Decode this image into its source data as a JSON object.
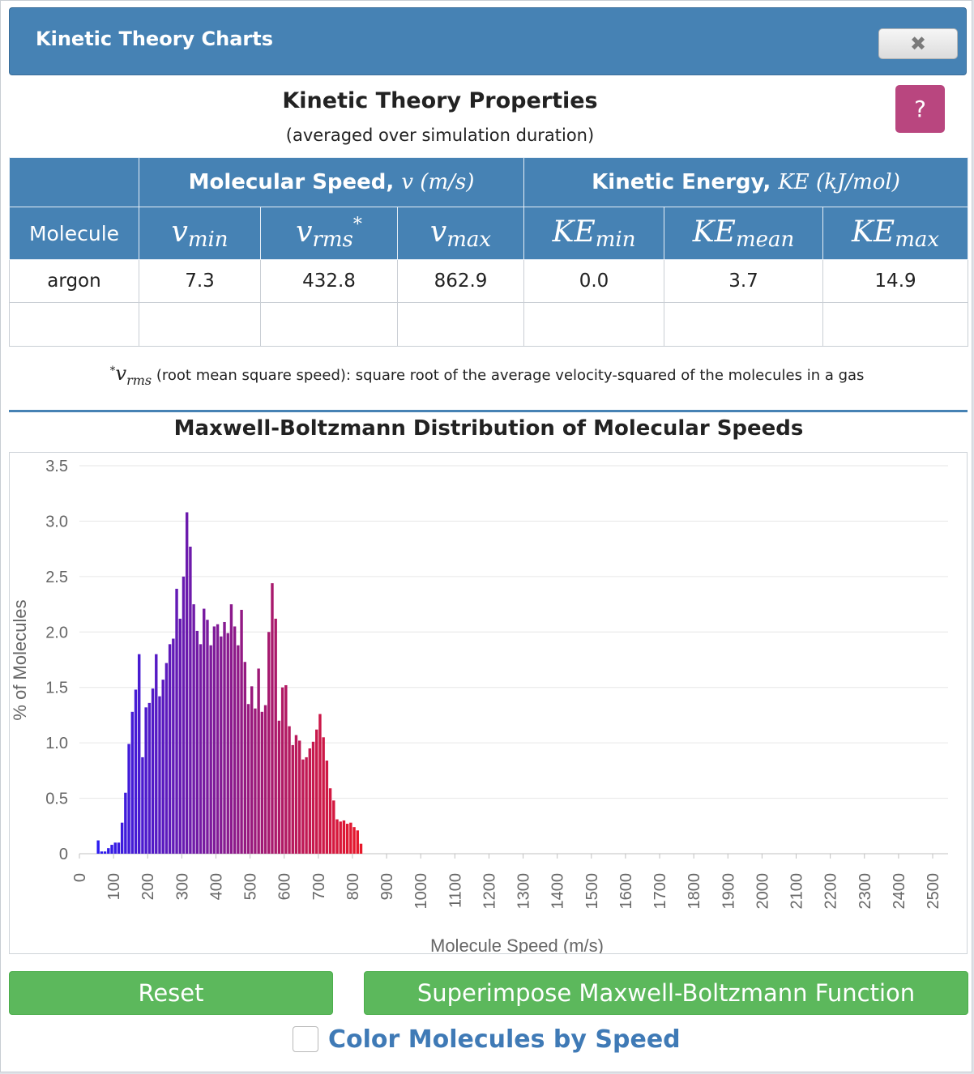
{
  "dialog": {
    "title": "Kinetic Theory Charts",
    "close_glyph": "✖",
    "help_glyph": "?"
  },
  "properties": {
    "title": "Kinetic Theory Properties",
    "subtitle": "(averaged over simulation duration)",
    "group_speed_label": "Molecular Speed, ",
    "group_speed_math": "v (m/s)",
    "group_energy_label": "Kinetic Energy, ",
    "group_energy_math": "KE (kJ/mol)",
    "molecule_header": "Molecule",
    "col_vmin_sym": "v",
    "col_vmin_sub": "min",
    "col_vrms_sym": "v",
    "col_vrms_sub": "rms",
    "col_vrms_sup": "*",
    "col_vmax_sym": "v",
    "col_vmax_sub": "max",
    "col_kemin_sym": "KE",
    "col_kemin_sub": "min",
    "col_kemean_sym": "KE",
    "col_kemean_sub": "mean",
    "col_kemax_sym": "KE",
    "col_kemax_sub": "max",
    "rows": [
      {
        "molecule": "argon",
        "vmin": "7.3",
        "vrms": "432.8",
        "vmax": "862.9",
        "kemin": "0.0",
        "kemean": "3.7",
        "kemax": "14.9"
      }
    ],
    "footnote_star": "*",
    "footnote_sym": "v",
    "footnote_sub": "rms",
    "footnote_text": " (root mean square speed): square root of the average velocity-squared of the molecules in a gas"
  },
  "chart_title": "Maxwell-Boltzmann Distribution of Molecular Speeds",
  "chart_data": {
    "type": "bar",
    "xlabel": "Molecule Speed (m/s)",
    "ylabel": "% of Molecules",
    "ylim": [
      0,
      3.5
    ],
    "xlim": [
      0,
      2500
    ],
    "yticks": [
      "0",
      "0.5",
      "1.0",
      "1.5",
      "2.0",
      "2.5",
      "3.0",
      "3.5"
    ],
    "xticks": [
      "0",
      "100",
      "200",
      "300",
      "400",
      "500",
      "600",
      "700",
      "800",
      "900",
      "1000",
      "1100",
      "1200",
      "1300",
      "1400",
      "1500",
      "1600",
      "1700",
      "1800",
      "1900",
      "2000",
      "2100",
      "2200",
      "2300",
      "2400",
      "2500"
    ],
    "grid": true,
    "bin_width_ms": 10,
    "bin_starts_ms": [
      50,
      60,
      70,
      80,
      90,
      100,
      110,
      120,
      130,
      140,
      150,
      160,
      170,
      180,
      190,
      200,
      210,
      220,
      230,
      240,
      250,
      260,
      270,
      280,
      290,
      300,
      310,
      320,
      330,
      340,
      350,
      360,
      370,
      380,
      390,
      400,
      410,
      420,
      430,
      440,
      450,
      460,
      470,
      480,
      490,
      500,
      510,
      520,
      530,
      540,
      550,
      560,
      570,
      580,
      590,
      600,
      610,
      620,
      630,
      640,
      650,
      660,
      670,
      680,
      690,
      700,
      710,
      720,
      730,
      740,
      750,
      760,
      770,
      780,
      790,
      800,
      810,
      820
    ],
    "values": [
      0.12,
      0.02,
      0.02,
      0.05,
      0.08,
      0.1,
      0.1,
      0.28,
      0.55,
      0.99,
      1.28,
      1.48,
      1.8,
      0.87,
      1.32,
      1.36,
      1.49,
      1.8,
      1.42,
      1.57,
      1.72,
      1.89,
      1.94,
      2.39,
      2.12,
      2.5,
      3.08,
      2.77,
      2.25,
      2.01,
      1.89,
      2.21,
      2.11,
      1.88,
      2.05,
      2.07,
      1.96,
      2.09,
      1.99,
      2.25,
      2.05,
      1.88,
      2.2,
      1.73,
      1.35,
      1.51,
      1.31,
      1.67,
      1.28,
      1.34,
      2.0,
      2.44,
      2.12,
      1.2,
      1.5,
      1.52,
      1.15,
      0.98,
      1.07,
      1.02,
      0.85,
      0.87,
      0.95,
      1.01,
      1.12,
      1.26,
      1.05,
      0.84,
      0.59,
      0.48,
      0.31,
      0.29,
      0.3,
      0.27,
      0.28,
      0.24,
      0.21,
      0.09
    ],
    "color_scale": {
      "low": "#2b1bf0",
      "high": "#e8182a"
    }
  },
  "buttons": {
    "reset": "Reset",
    "superimpose": "Superimpose Maxwell-Boltzmann Function"
  },
  "color_by_speed_label": "Color Molecules by Speed"
}
